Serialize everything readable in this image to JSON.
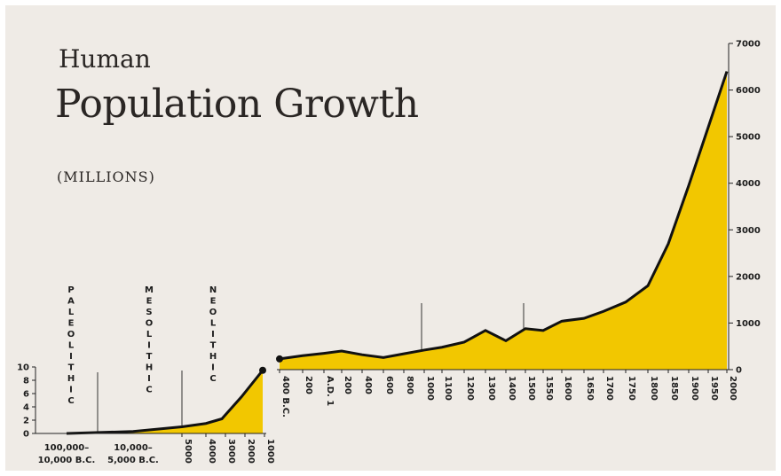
{
  "title_line1": "Human",
  "title_line2": "Population Growth",
  "units_label": "(MILLIONS)",
  "colors": {
    "fill": "#f2c700",
    "line": "#111111",
    "background": "#efebe6"
  },
  "chart_data": [
    {
      "type": "area",
      "panel": "prehistoric",
      "ylim": [
        0,
        10
      ],
      "y_ticks": [
        "0",
        "2",
        "4",
        "6",
        "8",
        "10"
      ],
      "x_labels": [
        "100,000–\n10,000 B.C.",
        "10,000–\n5,000 B.C.",
        "5000",
        "4000",
        "3000",
        "2000",
        "1000"
      ],
      "eras": [
        "PALEOLITHIC",
        "MESOLITHIC",
        "NEOLITHIC"
      ],
      "x": [
        "100,000–10,000 B.C.",
        "10,000–5,000 B.C.",
        "5000",
        "4000",
        "3000",
        "2000",
        "1000"
      ],
      "values": [
        0,
        0.3,
        1,
        1.5,
        2.2,
        5.5,
        9.5
      ]
    },
    {
      "type": "area",
      "panel": "historic",
      "ylim": [
        0,
        7000
      ],
      "y_ticks": [
        "0",
        "1000",
        "2000",
        "3000",
        "4000",
        "5000",
        "6000",
        "7000"
      ],
      "x": [
        "400 B.C.",
        "200",
        "A.D. 1",
        "200",
        "400",
        "600",
        "800",
        "1000",
        "1100",
        "1200",
        "1300",
        "1400",
        "1500",
        "1550",
        "1600",
        "1650",
        "1700",
        "1750",
        "1800",
        "1850",
        "1900",
        "1950",
        "2000"
      ],
      "values": [
        230,
        300,
        350,
        400,
        320,
        260,
        340,
        420,
        480,
        590,
        840,
        620,
        880,
        840,
        1040,
        1100,
        1250,
        1450,
        1800,
        2700,
        3950,
        5200,
        6400
      ]
    }
  ]
}
